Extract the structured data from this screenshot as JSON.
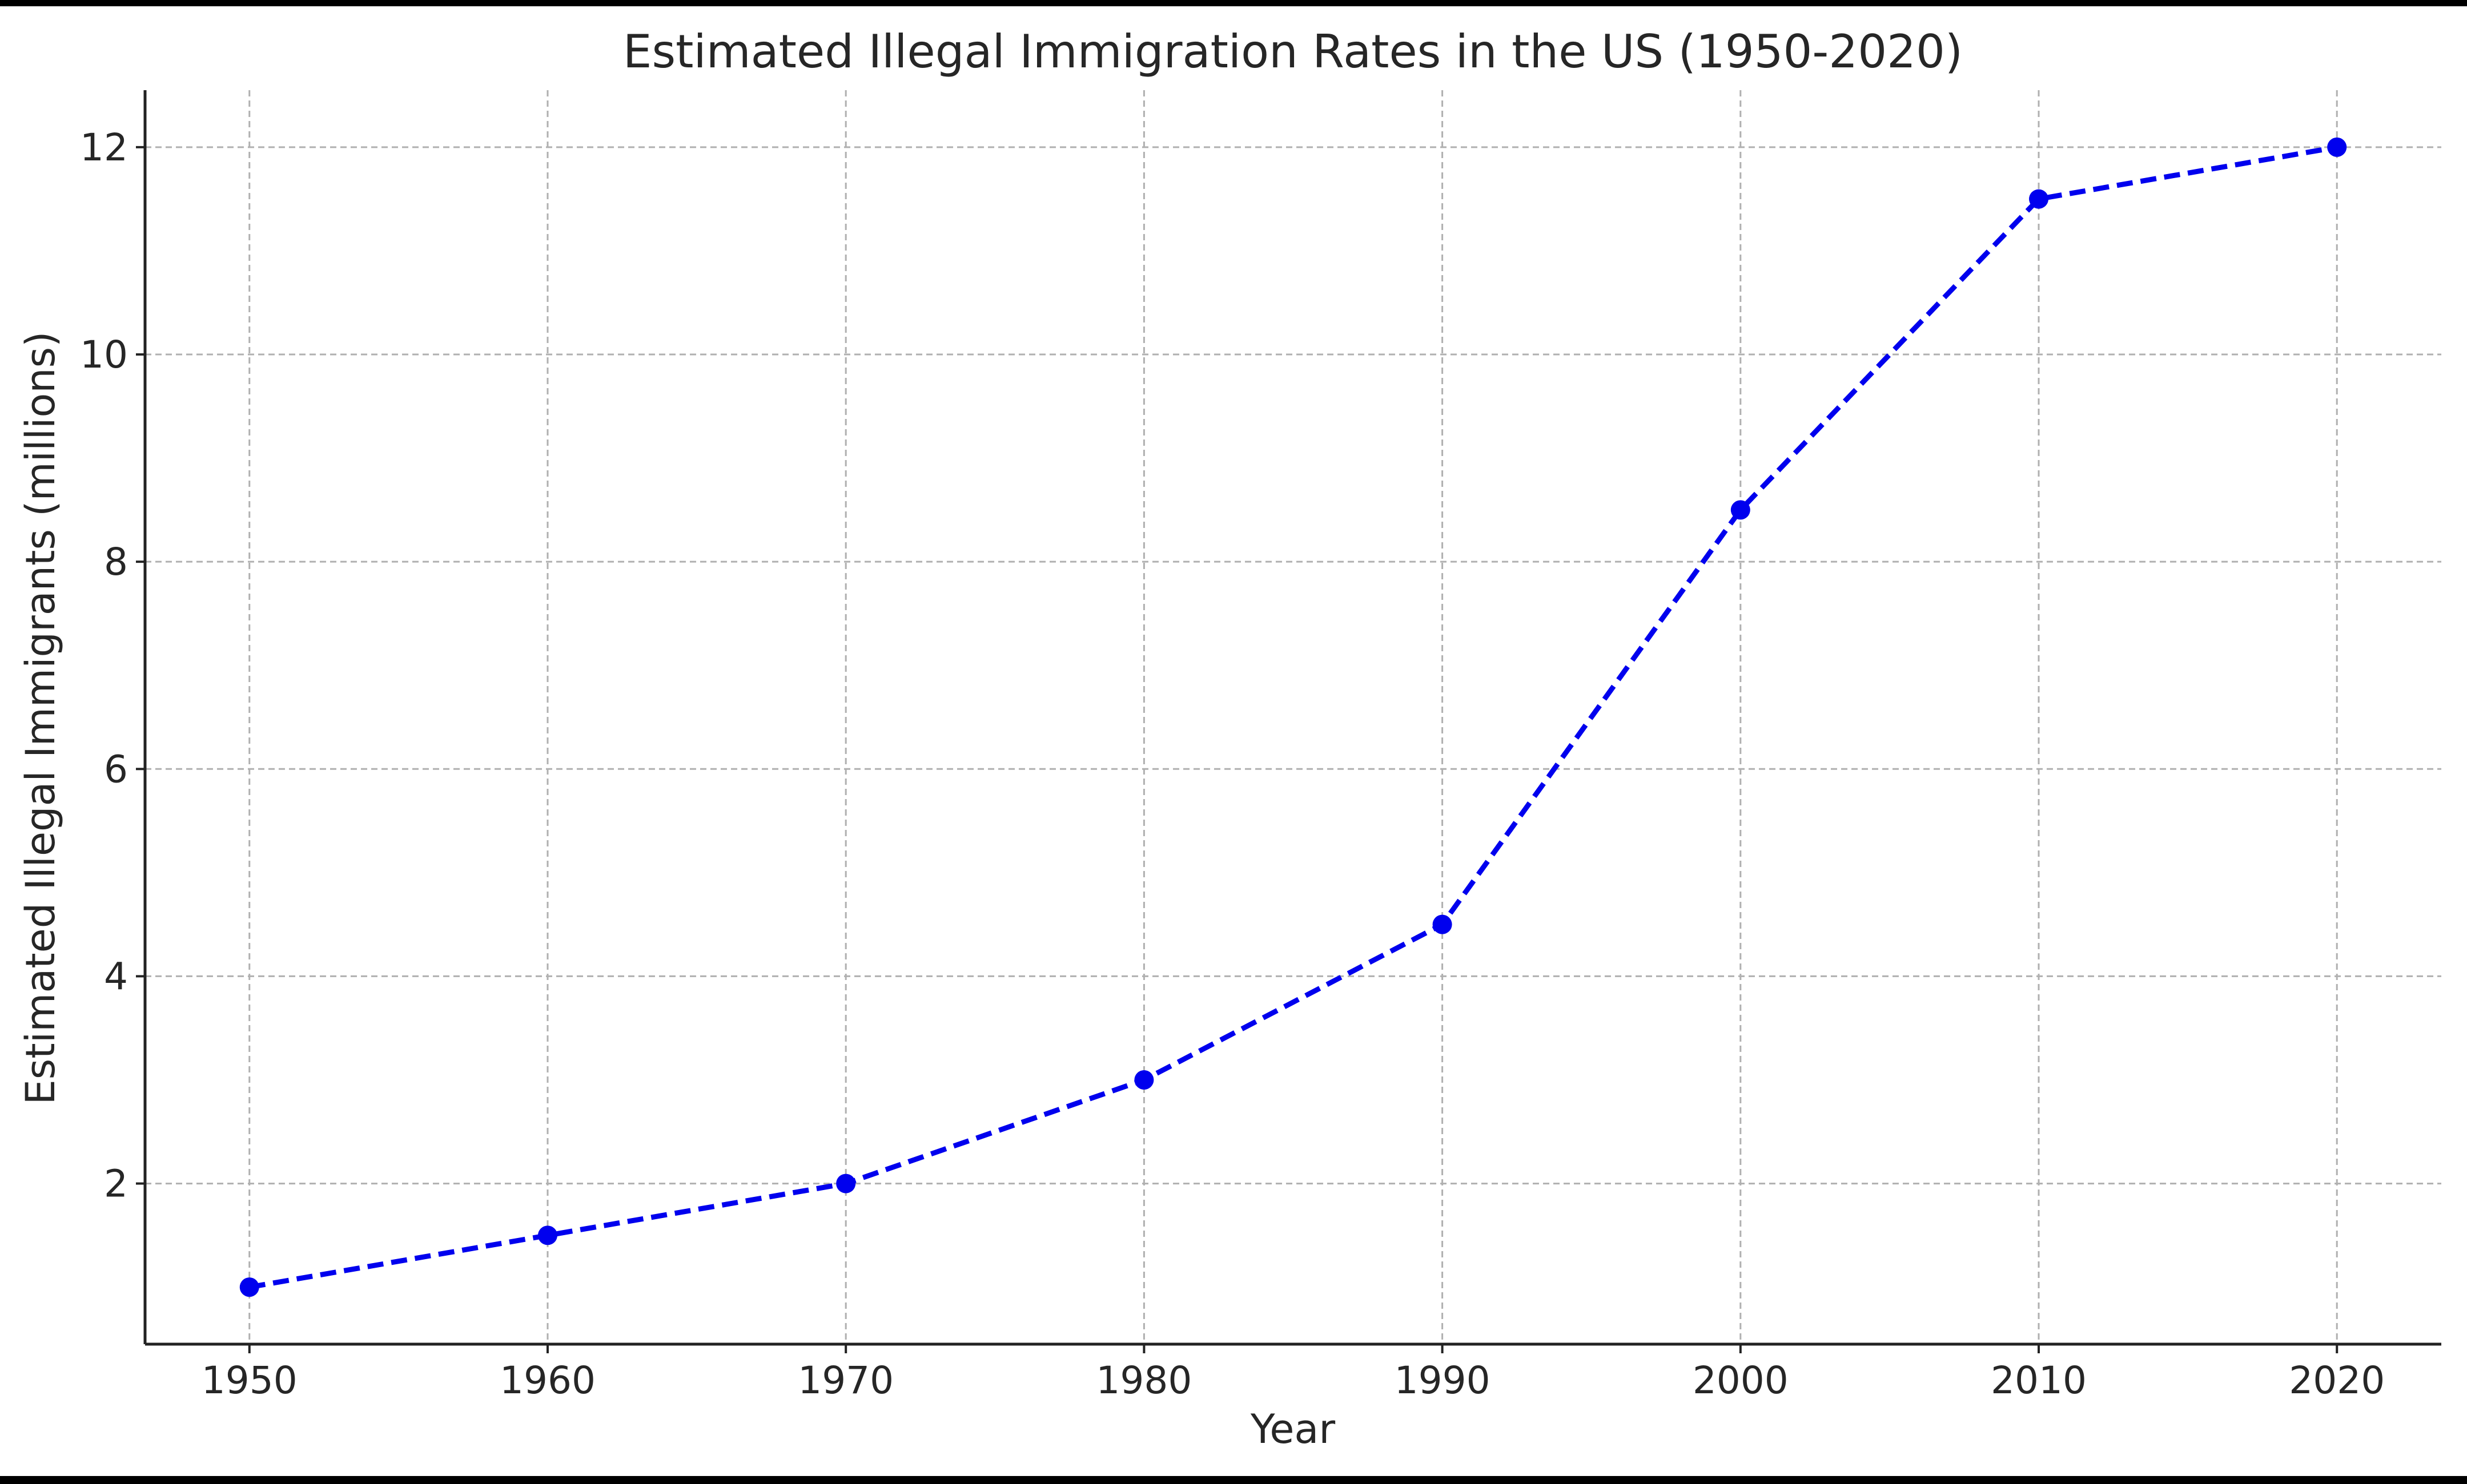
{
  "chart_data": {
    "type": "line",
    "title": "Estimated Illegal Immigration Rates in the US (1950-2020)",
    "xlabel": "Year",
    "ylabel": "Estimated Illegal Immigrants (millions)",
    "x": [
      1950,
      1960,
      1970,
      1980,
      1990,
      2000,
      2010,
      2020
    ],
    "series": [
      {
        "values": [
          1,
          1.5,
          2,
          3,
          4.5,
          8.5,
          11.5,
          12
        ],
        "color": "#0000ee",
        "line_style": "dashed",
        "marker": "circle"
      }
    ],
    "xlim": [
      1946.5,
      2023.5
    ],
    "ylim": [
      0.45,
      12.55
    ],
    "xticks": [
      "1950",
      "1960",
      "1970",
      "1980",
      "1990",
      "2000",
      "2010",
      "2020"
    ],
    "yticks": [
      "2",
      "4",
      "6",
      "8",
      "10",
      "12"
    ],
    "grid": true,
    "legend": "none"
  }
}
